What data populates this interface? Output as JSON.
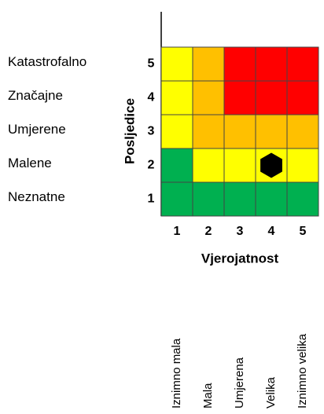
{
  "left_labels": [
    "Katastrofalno",
    "Značajne",
    "Umjerene",
    "Malene",
    "Neznatne"
  ],
  "y_title": "Posljedice",
  "row_numbers": [
    "5",
    "4",
    "3",
    "2",
    "1"
  ],
  "col_numbers": [
    "1",
    "2",
    "3",
    "4",
    "5"
  ],
  "x_title": "Vjerojatnost",
  "col_labels": [
    "Iznimno mala",
    "Mala",
    "Umjerena",
    "Velika",
    "Iznimno velika"
  ],
  "cells": [
    [
      "#ffff00",
      "#ffc000",
      "#ff0000",
      "#ff0000",
      "#ff0000"
    ],
    [
      "#ffff00",
      "#ffc000",
      "#ff0000",
      "#ff0000",
      "#ff0000"
    ],
    [
      "#ffff00",
      "#ffc000",
      "#ffc000",
      "#ffc000",
      "#ffc000"
    ],
    [
      "#00b050",
      "#ffff00",
      "#ffff00",
      "#ffff00",
      "#ffff00"
    ],
    [
      "#00b050",
      "#00b050",
      "#00b050",
      "#00b050",
      "#00b050"
    ]
  ],
  "marker": {
    "consequence": 2,
    "likelihood": 4
  }
}
